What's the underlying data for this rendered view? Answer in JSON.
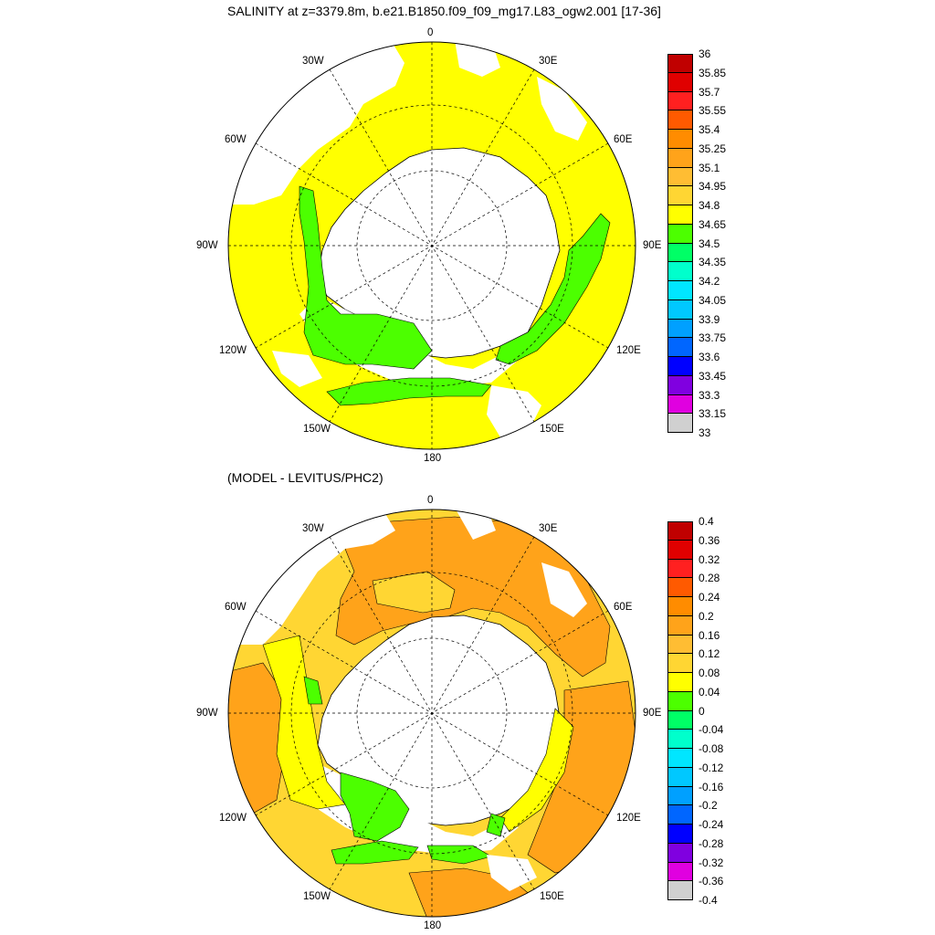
{
  "panels": [
    {
      "title": "SALINITY at z=3379.8m, b.e21.B1850.f09_f09_mg17.L83_ogw2.001 [17-36]",
      "longitude_labels": {
        "n": "0",
        "ne": "30E",
        "ene": "60E",
        "e": "90E",
        "ese": "120E",
        "sse": "150E",
        "s": "180",
        "ssw": "150W",
        "wsw": "120W",
        "w": "90W",
        "wnw": "60W",
        "nnw": "30W"
      },
      "colorbar": {
        "labels": [
          "36",
          "35.85",
          "35.7",
          "35.55",
          "35.4",
          "35.25",
          "35.1",
          "34.95",
          "34.8",
          "34.65",
          "34.5",
          "34.35",
          "34.2",
          "34.05",
          "33.9",
          "33.75",
          "33.6",
          "33.45",
          "33.3",
          "33.15",
          "33"
        ],
        "colors": [
          "#c00000",
          "#e00000",
          "#ff2020",
          "#ff5a00",
          "#ff8c00",
          "#ffa31a",
          "#ffbd33",
          "#ffd633",
          "#ffff00",
          "#4cff00",
          "#00ff66",
          "#00ffcc",
          "#00e6ff",
          "#00c8ff",
          "#00a0ff",
          "#0066ff",
          "#0000ff",
          "#8000e0",
          "#e000e0",
          "#d0d0d0",
          "#707070"
        ]
      },
      "fields": {
        "ocean": "#ffff00",
        "patch": "#4cff00",
        "warm": null
      }
    },
    {
      "title": "(MODEL - LEVITUS/PHC2)",
      "longitude_labels": {
        "n": "0",
        "ne": "30E",
        "ene": "60E",
        "e": "90E",
        "ese": "120E",
        "sse": "150E",
        "s": "180",
        "ssw": "150W",
        "wsw": "120W",
        "w": "90W",
        "wnw": "60W",
        "nnw": "30W"
      },
      "colorbar": {
        "labels": [
          "0.4",
          "0.36",
          "0.32",
          "0.28",
          "0.24",
          "0.2",
          "0.16",
          "0.12",
          "0.08",
          "0.04",
          "0",
          "-0.04",
          "-0.08",
          "-0.12",
          "-0.16",
          "-0.2",
          "-0.24",
          "-0.28",
          "-0.32",
          "-0.36",
          "-0.4"
        ],
        "colors": [
          "#c00000",
          "#e00000",
          "#ff2020",
          "#ff5a00",
          "#ff8c00",
          "#ffa31a",
          "#ffbd33",
          "#ffd633",
          "#ffff00",
          "#4cff00",
          "#00ff66",
          "#00ffcc",
          "#00e6ff",
          "#00c8ff",
          "#00a0ff",
          "#0066ff",
          "#0000ff",
          "#8000e0",
          "#e000e0",
          "#d0d0d0",
          "#707070"
        ]
      },
      "fields": {
        "ocean": "#ffd633",
        "patch": "#4cff00",
        "warm": "#ffa31a"
      }
    }
  ]
}
